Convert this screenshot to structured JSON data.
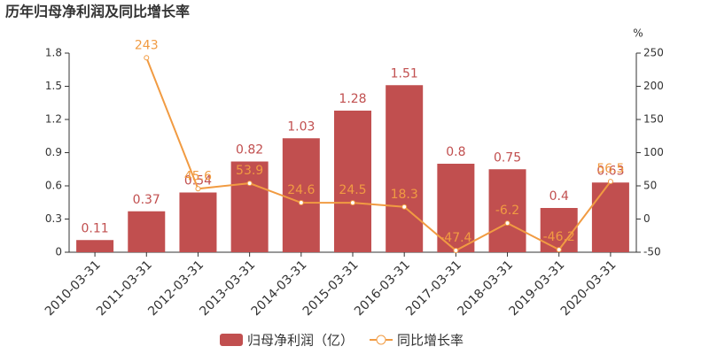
{
  "chart_data": {
    "type": "bar-line",
    "title": "历年归母净利润及同比增长率",
    "categories": [
      "2010-03-31",
      "2011-03-31",
      "2012-03-31",
      "2013-03-31",
      "2014-03-31",
      "2015-03-31",
      "2016-03-31",
      "2017-03-31",
      "2018-03-31",
      "2019-03-31",
      "2020-03-31"
    ],
    "series": [
      {
        "name": "归母净利润（亿）",
        "type": "bar",
        "color": "#c14f4f",
        "values": [
          0.11,
          0.37,
          0.54,
          0.82,
          1.03,
          1.28,
          1.51,
          0.8,
          0.75,
          0.4,
          0.63
        ]
      },
      {
        "name": "同比增长率",
        "type": "line",
        "axis": "y2",
        "color": "#f19b42",
        "values": [
          null,
          243,
          45.6,
          53.9,
          24.6,
          24.5,
          18.3,
          -47.4,
          -6.2,
          -46.2,
          56.5
        ]
      }
    ],
    "ylim": [
      0,
      1.8
    ],
    "yticks": [
      0,
      0.3,
      0.6,
      0.9,
      1.2,
      1.5,
      1.8
    ],
    "y2lim": [
      -50,
      250
    ],
    "y2ticks": [
      -50,
      0,
      50,
      100,
      150,
      200,
      250
    ],
    "y2label": "%",
    "legend": "bottom"
  }
}
